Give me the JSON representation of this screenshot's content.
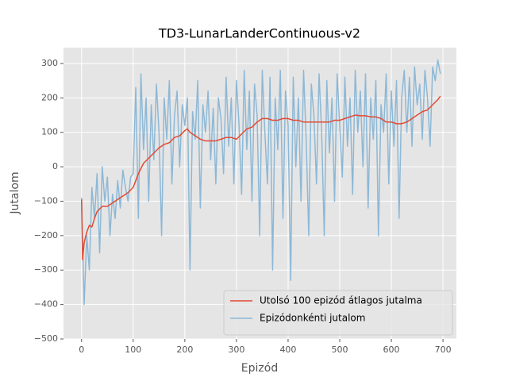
{
  "chart_data": {
    "type": "line",
    "title": "TD3-LunarLanderContinuous-v2",
    "xlabel": "Epizód",
    "ylabel": "Jutalom",
    "xlim": [
      -35,
      726
    ],
    "ylim": [
      -500,
      346
    ],
    "xticks": [
      0,
      100,
      200,
      300,
      400,
      500,
      600,
      700
    ],
    "yticks": [
      {
        "value": -500,
        "label": "−500"
      },
      {
        "value": -400,
        "label": "−400"
      },
      {
        "value": -300,
        "label": "−300"
      },
      {
        "value": -200,
        "label": "−200"
      },
      {
        "value": -100,
        "label": "−100"
      },
      0,
      100,
      200,
      300
    ],
    "grid": true,
    "legend": "lower right",
    "series": [
      {
        "name": "Utolsó 100 epizód átlagos jutalma",
        "color": "#E24A33",
        "x": [
          0,
          2,
          5,
          10,
          15,
          20,
          25,
          30,
          40,
          50,
          60,
          70,
          80,
          90,
          100,
          105,
          110,
          120,
          130,
          140,
          150,
          160,
          170,
          180,
          190,
          200,
          205,
          210,
          220,
          230,
          240,
          250,
          260,
          270,
          280,
          290,
          300,
          310,
          320,
          330,
          340,
          350,
          360,
          370,
          380,
          390,
          400,
          410,
          420,
          430,
          440,
          450,
          460,
          470,
          480,
          490,
          500,
          510,
          520,
          530,
          540,
          550,
          560,
          570,
          580,
          590,
          600,
          610,
          620,
          630,
          640,
          650,
          660,
          670,
          680,
          690,
          695
        ],
        "values": [
          -95,
          -270,
          -220,
          -190,
          -170,
          -175,
          -150,
          -130,
          -115,
          -115,
          -105,
          -95,
          -85,
          -75,
          -60,
          -40,
          -20,
          10,
          25,
          40,
          55,
          65,
          70,
          85,
          90,
          105,
          110,
          100,
          90,
          80,
          75,
          75,
          75,
          80,
          85,
          85,
          80,
          95,
          110,
          115,
          130,
          140,
          140,
          135,
          135,
          140,
          140,
          135,
          135,
          130,
          130,
          130,
          130,
          130,
          130,
          135,
          135,
          140,
          145,
          150,
          148,
          148,
          145,
          145,
          140,
          130,
          130,
          125,
          125,
          130,
          140,
          150,
          160,
          165,
          180,
          195,
          205
        ]
      },
      {
        "name": "Epizódonkénti jutalom",
        "color": "#8DB8D6",
        "x": [
          0,
          5,
          10,
          15,
          20,
          25,
          30,
          35,
          40,
          45,
          50,
          55,
          60,
          65,
          70,
          75,
          80,
          85,
          90,
          95,
          100,
          105,
          110,
          115,
          120,
          125,
          130,
          135,
          140,
          145,
          150,
          155,
          160,
          165,
          170,
          175,
          180,
          185,
          190,
          195,
          200,
          205,
          210,
          215,
          220,
          225,
          230,
          235,
          240,
          245,
          250,
          255,
          260,
          265,
          270,
          275,
          280,
          285,
          290,
          295,
          300,
          305,
          310,
          315,
          320,
          325,
          330,
          335,
          340,
          345,
          350,
          355,
          360,
          365,
          370,
          375,
          380,
          385,
          390,
          395,
          400,
          405,
          410,
          415,
          420,
          425,
          430,
          435,
          440,
          445,
          450,
          455,
          460,
          465,
          470,
          475,
          480,
          485,
          490,
          495,
          500,
          505,
          510,
          515,
          520,
          525,
          530,
          535,
          540,
          545,
          550,
          555,
          560,
          565,
          570,
          575,
          580,
          585,
          590,
          595,
          600,
          605,
          610,
          615,
          620,
          625,
          630,
          635,
          640,
          645,
          650,
          655,
          660,
          665,
          670,
          675,
          680,
          685,
          690,
          695
        ],
        "values": [
          -90,
          -400,
          -200,
          -300,
          -60,
          -150,
          -20,
          -250,
          0,
          -100,
          -30,
          -200,
          -80,
          -150,
          -40,
          -120,
          -10,
          -60,
          -100,
          -30,
          -20,
          230,
          -150,
          270,
          50,
          200,
          -100,
          180,
          20,
          240,
          100,
          -200,
          200,
          80,
          250,
          -50,
          150,
          220,
          0,
          180,
          120,
          200,
          -300,
          160,
          80,
          250,
          -120,
          180,
          100,
          220,
          20,
          170,
          -50,
          200,
          140,
          -20,
          260,
          60,
          200,
          -50,
          250,
          120,
          -80,
          280,
          50,
          220,
          -100,
          240,
          150,
          -200,
          280,
          100,
          -50,
          260,
          -300,
          200,
          50,
          280,
          -150,
          220,
          120,
          -330,
          260,
          0,
          200,
          -100,
          280,
          80,
          -200,
          240,
          150,
          -50,
          270,
          100,
          -200,
          250,
          40,
          200,
          -100,
          270,
          120,
          -30,
          260,
          60,
          200,
          -80,
          280,
          100,
          220,
          0,
          270,
          -120,
          200,
          80,
          250,
          -200,
          180,
          100,
          270,
          -50,
          220,
          60,
          250,
          -150,
          200,
          280,
          100,
          260,
          60,
          290,
          180,
          240,
          80,
          280,
          200,
          60,
          290,
          250,
          310,
          270
        ]
      }
    ]
  }
}
